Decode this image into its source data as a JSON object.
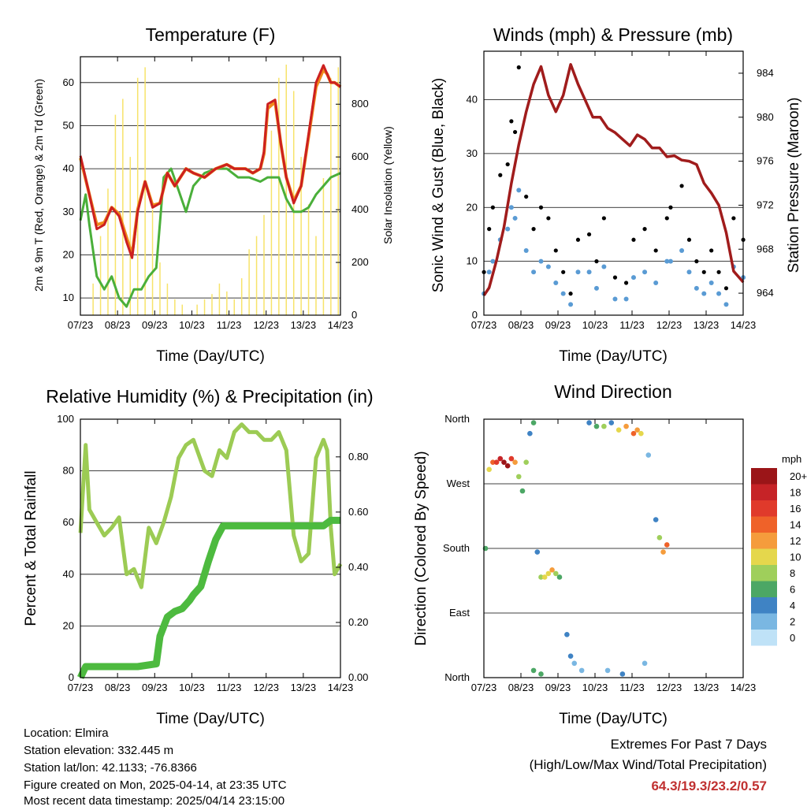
{
  "colors": {
    "temp2m": "#cc2020",
    "td": "#4aaf3a",
    "solar": "#f7e36a",
    "gust": "#000000",
    "wind": "#5a9bd4",
    "pressure": "#a01c1c",
    "rh": "#9ccb54",
    "precip": "#4dba3f",
    "extremes_value": "#c03030"
  },
  "info": {
    "location": "Location: Elmira",
    "elevation": "Station elevation: 332.445 m",
    "latlon": "Station lat/lon: 42.1133; -76.8366",
    "created": "Figure created on Mon, 2025-04-14, at 23:35 UTC",
    "recent": "Most recent data timestamp: 2025/04/14 23:15:00"
  },
  "extremes": {
    "title": "Extremes For Past 7 Days",
    "subtitle": "(High/Low/Max Wind/Total Precipitation)",
    "values": "64.3/19.3/23.2/0.57"
  },
  "chart_data": [
    {
      "type": "line",
      "title": "Temperature (F)",
      "xlabel": "Time (Day/UTC)",
      "ylabel": "2m & 9m T (Red, Orange) & 2m Td (Green)",
      "ylabel_right": "Solar Insolation (Yellow)",
      "x_ticks": [
        "07/23",
        "08/23",
        "09/23",
        "10/23",
        "11/23",
        "12/23",
        "13/23",
        "14/23"
      ],
      "xlim": [
        7.958,
        14.958
      ],
      "ylim": [
        6,
        66
      ],
      "yticks": [
        10,
        20,
        30,
        40,
        50,
        60
      ],
      "ylim_right": [
        0,
        980
      ],
      "yticks_right": [
        0,
        200,
        400,
        600,
        800
      ],
      "grid": true,
      "series": [
        {
          "name": "2m T",
          "color": "#cc2020",
          "x": [
            7.96,
            8.2,
            8.4,
            8.6,
            8.8,
            9.0,
            9.2,
            9.35,
            9.5,
            9.7,
            9.9,
            10.1,
            10.3,
            10.5,
            10.8,
            11.0,
            11.3,
            11.6,
            11.9,
            12.1,
            12.4,
            12.6,
            12.8,
            12.9,
            13.0,
            13.2,
            13.35,
            13.5,
            13.7,
            13.9,
            14.1,
            14.3,
            14.5,
            14.6,
            14.7,
            14.8,
            14.96
          ],
          "y": [
            43,
            34,
            26,
            27,
            31,
            29,
            23,
            19.3,
            30,
            37,
            31,
            32,
            39,
            36,
            40,
            39,
            38,
            40,
            41,
            40,
            40,
            39,
            40,
            44,
            55,
            56,
            46,
            38,
            32,
            36,
            48,
            60,
            64,
            62,
            60,
            60,
            59
          ]
        },
        {
          "name": "9m T",
          "color": "#f08a1a",
          "x": [
            7.96,
            8.2,
            8.4,
            8.6,
            8.8,
            9.0,
            9.2,
            9.35,
            9.5,
            9.7,
            9.9,
            10.1,
            10.3,
            10.5,
            10.8,
            11.0,
            11.3,
            11.6,
            11.9,
            12.1,
            12.4,
            12.6,
            12.8,
            12.9,
            13.0,
            13.2,
            13.35,
            13.5,
            13.7,
            13.9,
            14.1,
            14.3,
            14.5,
            14.6,
            14.7,
            14.8,
            14.96
          ],
          "y": [
            42.5,
            34,
            27,
            27.5,
            31,
            29.5,
            24,
            20,
            30.5,
            37,
            31.5,
            32,
            39,
            36,
            40,
            39,
            38,
            40,
            41,
            40,
            40,
            39,
            40,
            43.5,
            54,
            55.5,
            46,
            38,
            32.5,
            36,
            47.5,
            59,
            63,
            62,
            60,
            60,
            59
          ]
        },
        {
          "name": "2m Td",
          "color": "#4aaf3a",
          "x": [
            7.96,
            8.1,
            8.2,
            8.4,
            8.6,
            8.8,
            9.0,
            9.2,
            9.4,
            9.6,
            9.8,
            10.0,
            10.2,
            10.4,
            10.6,
            10.8,
            11.0,
            11.3,
            11.6,
            11.9,
            12.2,
            12.5,
            12.8,
            13.0,
            13.3,
            13.5,
            13.7,
            13.9,
            14.1,
            14.3,
            14.5,
            14.7,
            14.96
          ],
          "y": [
            28,
            34,
            27,
            15,
            12,
            15,
            10,
            8,
            12,
            12,
            15,
            17,
            38,
            40,
            35,
            30,
            36,
            39,
            40,
            40,
            38,
            38,
            37,
            38,
            38,
            33,
            30,
            30,
            31,
            34,
            36,
            38,
            39
          ]
        },
        {
          "name": "Solar Insolation",
          "color": "#f7e36a",
          "axis": "right",
          "x": [
            8.1,
            8.3,
            8.5,
            8.7,
            8.9,
            9.1,
            9.3,
            9.5,
            9.7,
            9.9,
            10.1,
            10.3,
            10.5,
            10.7,
            10.9,
            11.1,
            11.3,
            11.5,
            11.7,
            11.9,
            12.1,
            12.3,
            12.5,
            12.7,
            12.9,
            13.1,
            13.3,
            13.5,
            13.7,
            13.9,
            14.1,
            14.3,
            14.5,
            14.7,
            14.9
          ],
          "y": [
            0,
            120,
            300,
            480,
            760,
            820,
            600,
            900,
            940,
            400,
            200,
            120,
            60,
            40,
            0,
            40,
            60,
            80,
            120,
            90,
            60,
            140,
            250,
            300,
            380,
            700,
            900,
            950,
            850,
            600,
            420,
            300,
            520,
            900,
            940
          ]
        }
      ]
    },
    {
      "type": "line",
      "title": "Winds (mph) & Pressure (mb)",
      "xlabel": "Time (Day/UTC)",
      "ylabel": "Sonic Wind & Gust (Blue, Black)",
      "ylabel_right": "Station Pressure (Maroon)",
      "x_ticks": [
        "07/23",
        "08/23",
        "09/23",
        "10/23",
        "11/23",
        "12/23",
        "13/23",
        "14/23"
      ],
      "xlim": [
        7.958,
        14.958
      ],
      "ylim": [
        0,
        49
      ],
      "yticks": [
        0,
        10,
        20,
        30,
        40
      ],
      "ylim_right": [
        962.0,
        986.0
      ],
      "yticks_right": [
        964,
        968,
        972,
        976,
        980,
        984
      ],
      "grid": true,
      "series": [
        {
          "name": "Gust",
          "color": "#000000",
          "style": "scatter",
          "x": [
            7.96,
            8.1,
            8.2,
            8.4,
            8.6,
            8.7,
            8.8,
            8.9,
            9.1,
            9.3,
            9.5,
            9.7,
            9.9,
            10.1,
            10.3,
            10.5,
            10.8,
            11.0,
            11.2,
            11.5,
            11.8,
            12.0,
            12.3,
            12.6,
            12.9,
            13.0,
            13.3,
            13.5,
            13.7,
            13.9,
            14.1,
            14.3,
            14.5,
            14.7,
            14.96
          ],
          "y": [
            8,
            16,
            20,
            26,
            28,
            36,
            34,
            46,
            22,
            16,
            20,
            18,
            12,
            8,
            4,
            14,
            15,
            10,
            18,
            7,
            6,
            14,
            16,
            12,
            18,
            20,
            24,
            14,
            10,
            8,
            12,
            8,
            5,
            18,
            14
          ]
        },
        {
          "name": "Wind",
          "color": "#5a9bd4",
          "style": "scatter",
          "x": [
            7.96,
            8.1,
            8.2,
            8.4,
            8.6,
            8.7,
            8.8,
            8.9,
            9.1,
            9.3,
            9.5,
            9.7,
            9.9,
            10.1,
            10.3,
            10.5,
            10.8,
            11.0,
            11.2,
            11.5,
            11.8,
            12.0,
            12.3,
            12.6,
            12.9,
            13.0,
            13.3,
            13.5,
            13.7,
            13.9,
            14.1,
            14.3,
            14.5,
            14.7,
            14.96
          ],
          "y": [
            4,
            8,
            10,
            14,
            16,
            20,
            18,
            23.2,
            12,
            8,
            10,
            9,
            6,
            4,
            2,
            8,
            8,
            5,
            9,
            3,
            3,
            7,
            8,
            6,
            10,
            10,
            12,
            8,
            5,
            4,
            6,
            4,
            2,
            9,
            7
          ]
        },
        {
          "name": "Pressure",
          "color": "#a01c1c",
          "axis": "right",
          "x": [
            7.96,
            8.1,
            8.3,
            8.5,
            8.7,
            8.9,
            9.1,
            9.3,
            9.5,
            9.7,
            9.9,
            10.1,
            10.3,
            10.5,
            10.7,
            10.9,
            11.1,
            11.3,
            11.5,
            11.7,
            11.9,
            12.1,
            12.3,
            12.5,
            12.7,
            12.9,
            13.1,
            13.3,
            13.5,
            13.7,
            13.9,
            14.1,
            14.3,
            14.5,
            14.7,
            14.96
          ],
          "y": [
            963.8,
            964.5,
            967,
            970,
            974,
            977.5,
            980.5,
            983,
            984.6,
            982,
            980.5,
            982,
            984.8,
            983,
            981.5,
            980,
            980,
            979,
            978.6,
            978,
            977.4,
            978.4,
            978,
            977.2,
            977.2,
            976.4,
            976.5,
            976.1,
            976,
            975.7,
            974,
            973.1,
            972,
            969.5,
            966,
            965
          ]
        }
      ]
    },
    {
      "type": "line",
      "title": "Relative Humidity (%) & Precipitation (in)",
      "xlabel": "Time (Day/UTC)",
      "ylabel": "Percent & Total Rainfall",
      "x_ticks": [
        "07/23",
        "08/23",
        "09/23",
        "10/23",
        "11/23",
        "12/23",
        "13/23",
        "14/23"
      ],
      "xlim": [
        7.958,
        14.958
      ],
      "ylim": [
        0,
        100
      ],
      "yticks": [
        0,
        20,
        40,
        60,
        80,
        100
      ],
      "ylim_right": [
        0,
        0.9366
      ],
      "yticks_right": [
        "0.00",
        "0.20",
        "0.40",
        "0.60",
        "0.80"
      ],
      "grid": true,
      "series": [
        {
          "name": "RH",
          "color": "#9ccb54",
          "x": [
            7.96,
            8.1,
            8.2,
            8.4,
            8.6,
            8.8,
            9.0,
            9.2,
            9.4,
            9.6,
            9.8,
            10.0,
            10.2,
            10.4,
            10.6,
            10.8,
            11.0,
            11.3,
            11.5,
            11.7,
            11.9,
            12.1,
            12.3,
            12.5,
            12.7,
            12.9,
            13.1,
            13.3,
            13.5,
            13.7,
            13.9,
            14.1,
            14.3,
            14.5,
            14.6,
            14.7,
            14.8,
            14.96
          ],
          "y": [
            56,
            90,
            65,
            60,
            55,
            58,
            62,
            40,
            42,
            35,
            58,
            52,
            60,
            70,
            85,
            90,
            92,
            80,
            78,
            88,
            85,
            95,
            98,
            95,
            95,
            92,
            92,
            95,
            88,
            55,
            45,
            48,
            85,
            92,
            88,
            58,
            40,
            44
          ]
        },
        {
          "name": "Total Precipitation",
          "color": "#4dba3f",
          "axis": "right",
          "x": [
            7.96,
            8.1,
            8.2,
            8.5,
            9.0,
            9.5,
            10.0,
            10.1,
            10.3,
            10.5,
            10.7,
            10.9,
            11.0,
            11.2,
            11.4,
            11.6,
            11.8,
            12.0,
            12.3,
            12.5,
            12.7,
            13.0,
            13.3,
            13.5,
            13.8,
            14.0,
            14.3,
            14.5,
            14.7,
            14.96
          ],
          "y": [
            0.0,
            0.04,
            0.04,
            0.04,
            0.04,
            0.04,
            0.05,
            0.15,
            0.22,
            0.24,
            0.25,
            0.28,
            0.3,
            0.33,
            0.42,
            0.5,
            0.55,
            0.55,
            0.55,
            0.55,
            0.55,
            0.55,
            0.55,
            0.55,
            0.55,
            0.55,
            0.55,
            0.55,
            0.57,
            0.57
          ]
        }
      ]
    },
    {
      "type": "scatter",
      "title": "Wind Direction",
      "xlabel": "Time (Day/UTC)",
      "ylabel": "Direction (Colored By Speed)",
      "x_ticks": [
        "07/23",
        "08/23",
        "09/23",
        "10/23",
        "11/23",
        "12/23",
        "13/23",
        "14/23"
      ],
      "xlim": [
        7.958,
        14.958
      ],
      "y_categories": [
        "North",
        "East",
        "South",
        "West",
        "North"
      ],
      "ylim": [
        0,
        360
      ],
      "grid": true,
      "legend": {
        "title": "mph",
        "labels": [
          "20+",
          "18",
          "16",
          "14",
          "12",
          "10",
          "8",
          "6",
          "4",
          "2",
          "0"
        ],
        "colors": [
          "#9b1518",
          "#c62327",
          "#e03a2b",
          "#ef6229",
          "#f59c3c",
          "#e5d74c",
          "#9fcf5b",
          "#4ca765",
          "#3f83c4",
          "#7ab7e2",
          "#bfe2f7"
        ]
      },
      "points": [
        {
          "x": 8.0,
          "y": 180,
          "s": 6
        },
        {
          "x": 8.1,
          "y": 290,
          "s": 10
        },
        {
          "x": 8.2,
          "y": 300,
          "s": 14
        },
        {
          "x": 8.3,
          "y": 300,
          "s": 16
        },
        {
          "x": 8.4,
          "y": 305,
          "s": 18
        },
        {
          "x": 8.5,
          "y": 300,
          "s": 20
        },
        {
          "x": 8.6,
          "y": 295,
          "s": 20
        },
        {
          "x": 8.7,
          "y": 305,
          "s": 16
        },
        {
          "x": 8.8,
          "y": 300,
          "s": 12
        },
        {
          "x": 8.9,
          "y": 280,
          "s": 8
        },
        {
          "x": 9.0,
          "y": 260,
          "s": 6
        },
        {
          "x": 9.1,
          "y": 300,
          "s": 8
        },
        {
          "x": 9.2,
          "y": 340,
          "s": 4
        },
        {
          "x": 9.3,
          "y": 355,
          "s": 6
        },
        {
          "x": 9.3,
          "y": 10,
          "s": 6
        },
        {
          "x": 9.4,
          "y": 175,
          "s": 4
        },
        {
          "x": 9.5,
          "y": 140,
          "s": 8
        },
        {
          "x": 9.6,
          "y": 140,
          "s": 10
        },
        {
          "x": 9.7,
          "y": 145,
          "s": 10
        },
        {
          "x": 9.8,
          "y": 150,
          "s": 12
        },
        {
          "x": 9.9,
          "y": 145,
          "s": 8
        },
        {
          "x": 10.0,
          "y": 140,
          "s": 6
        },
        {
          "x": 10.2,
          "y": 60,
          "s": 3
        },
        {
          "x": 10.4,
          "y": 20,
          "s": 2
        },
        {
          "x": 10.6,
          "y": 10,
          "s": 2
        },
        {
          "x": 10.8,
          "y": 355,
          "s": 4
        },
        {
          "x": 11.0,
          "y": 350,
          "s": 6
        },
        {
          "x": 11.2,
          "y": 350,
          "s": 8
        },
        {
          "x": 11.4,
          "y": 355,
          "s": 4
        },
        {
          "x": 11.6,
          "y": 345,
          "s": 10
        },
        {
          "x": 11.8,
          "y": 350,
          "s": 12
        },
        {
          "x": 12.0,
          "y": 340,
          "s": 14
        },
        {
          "x": 12.1,
          "y": 345,
          "s": 12
        },
        {
          "x": 12.2,
          "y": 340,
          "s": 10
        },
        {
          "x": 12.4,
          "y": 310,
          "s": 2
        },
        {
          "x": 12.6,
          "y": 220,
          "s": 4
        },
        {
          "x": 12.7,
          "y": 195,
          "s": 8
        },
        {
          "x": 12.8,
          "y": 175,
          "s": 12
        },
        {
          "x": 12.9,
          "y": 185,
          "s": 14
        },
        {
          "x": 11.3,
          "y": 10,
          "s": 2
        },
        {
          "x": 11.7,
          "y": 5,
          "s": 4
        },
        {
          "x": 12.3,
          "y": 20,
          "s": 2
        },
        {
          "x": 10.3,
          "y": 30,
          "s": 4
        },
        {
          "x": 9.5,
          "y": 5,
          "s": 6
        }
      ]
    }
  ]
}
